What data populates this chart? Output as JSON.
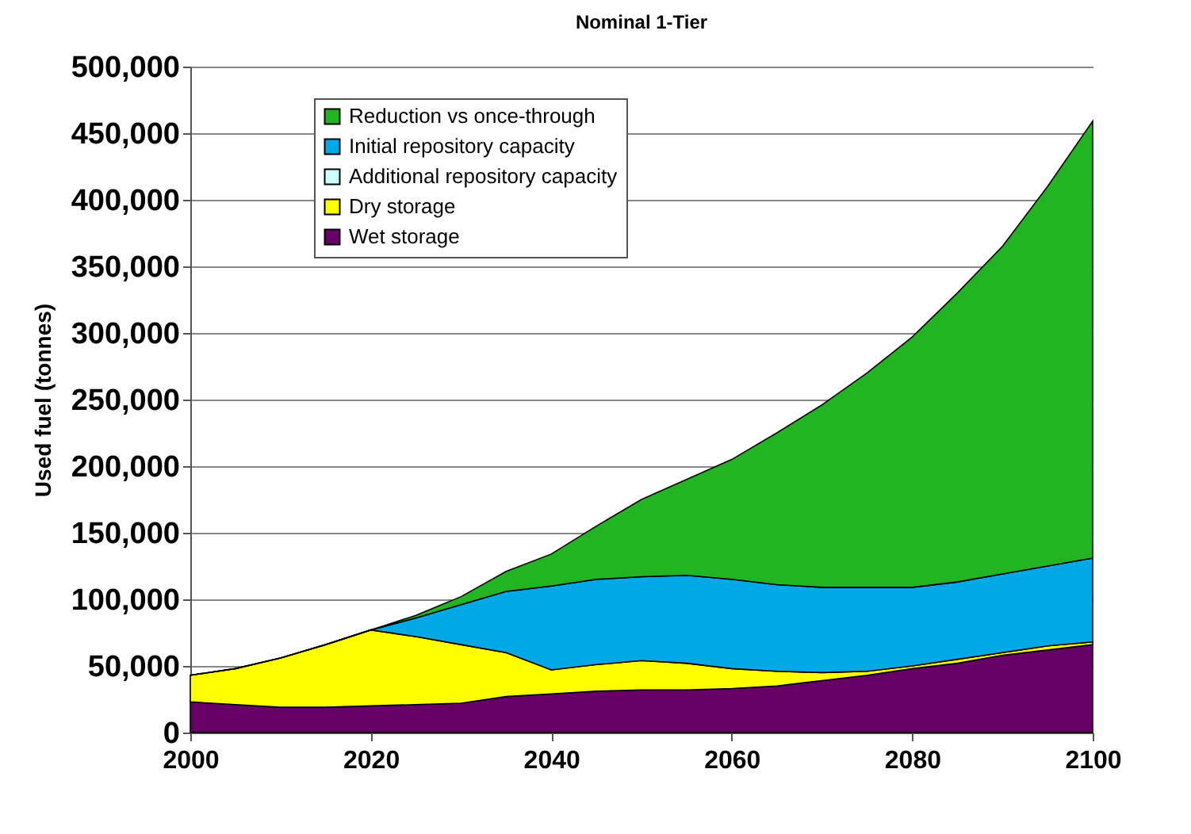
{
  "chart_data": {
    "type": "area",
    "title": "Nominal 1-Tier",
    "ylabel": "Used fuel (tonnes)",
    "stacked": true,
    "x": [
      2000,
      2005,
      2010,
      2015,
      2020,
      2025,
      2030,
      2035,
      2040,
      2045,
      2050,
      2055,
      2060,
      2065,
      2070,
      2075,
      2080,
      2085,
      2090,
      2095,
      2100
    ],
    "series": [
      {
        "name": "Wet storage",
        "color": "#660066",
        "values": [
          23000,
          21000,
          19000,
          19000,
          20000,
          21000,
          22000,
          27000,
          29000,
          31000,
          32000,
          32000,
          33000,
          35000,
          39000,
          43000,
          48000,
          52000,
          58000,
          62000,
          66000
        ]
      },
      {
        "name": "Dry storage",
        "color": "#ffff00",
        "values": [
          20000,
          27000,
          37000,
          47000,
          57000,
          51000,
          44000,
          33000,
          18000,
          20000,
          22000,
          20000,
          15000,
          11000,
          6000,
          3000,
          2000,
          3000,
          2000,
          3000,
          2000
        ]
      },
      {
        "name": "Additional repository capacity",
        "color": "#ccffff",
        "values": [
          null,
          null,
          null,
          null,
          null,
          null,
          null,
          null,
          null,
          null,
          null,
          null,
          null,
          null,
          null,
          null,
          null,
          null,
          null,
          null,
          null
        ]
      },
      {
        "name": "Initial repository capacity",
        "color": "#00a9e6",
        "values": [
          0,
          0,
          0,
          0,
          0,
          14000,
          30000,
          46000,
          63000,
          64000,
          63000,
          66000,
          67000,
          65000,
          64000,
          63000,
          59000,
          58000,
          59000,
          60000,
          63000
        ]
      },
      {
        "name": "Reduction vs once-through",
        "color": "#22b422",
        "values": [
          0,
          0,
          0,
          0,
          0,
          2000,
          6000,
          15000,
          24000,
          40000,
          58000,
          72000,
          90000,
          114000,
          137000,
          161000,
          188000,
          217000,
          246000,
          285000,
          328000
        ]
      }
    ],
    "xlim": [
      2000,
      2100
    ],
    "xticks": [
      2000,
      2020,
      2040,
      2060,
      2080,
      2100
    ],
    "ylim": [
      0,
      500000
    ],
    "yticks": [
      0,
      {
        "value": 50000,
        "label": "50,000"
      },
      {
        "value": 100000,
        "label": "100,000"
      },
      {
        "value": 150000,
        "label": "150,000"
      },
      {
        "value": 200000,
        "label": "200,000"
      },
      {
        "value": 250000,
        "label": "250,000"
      },
      {
        "value": 300000,
        "label": "300,000"
      },
      {
        "value": 350000,
        "label": "350,000"
      },
      {
        "value": 400000,
        "label": "400,000"
      },
      {
        "value": 450000,
        "label": "450,000"
      },
      {
        "value": 500000,
        "label": "500,000"
      }
    ],
    "grid": "y",
    "legend": "top left"
  }
}
